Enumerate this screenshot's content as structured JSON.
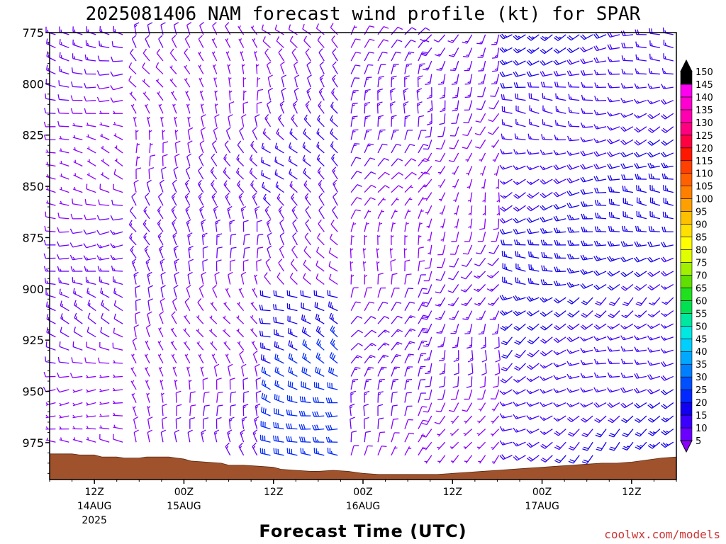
{
  "chart_data": {
    "type": "wind-barb-profile",
    "title": "2025081406 NAM forecast wind profile (kt) for SPAR",
    "xlabel": "Forecast Time (UTC)",
    "y_axis": {
      "label": "",
      "ticks": [
        775,
        800,
        825,
        850,
        875,
        900,
        925,
        950,
        975
      ],
      "range": [
        775,
        993
      ],
      "inverted": true
    },
    "x_axis": {
      "range_hours": [
        0,
        84
      ],
      "ticks": [
        {
          "hour": 6,
          "l1": "12Z",
          "l2": "14AUG",
          "l3": "2025"
        },
        {
          "hour": 18,
          "l1": "00Z",
          "l2": "15AUG",
          "l3": ""
        },
        {
          "hour": 30,
          "l1": "12Z",
          "l2": "",
          "l3": ""
        },
        {
          "hour": 42,
          "l1": "00Z",
          "l2": "16AUG",
          "l3": ""
        },
        {
          "hour": 54,
          "l1": "12Z",
          "l2": "",
          "l3": ""
        },
        {
          "hour": 66,
          "l1": "00Z",
          "l2": "17AUG",
          "l3": ""
        },
        {
          "hour": 78,
          "l1": "12Z",
          "l2": "",
          "l3": ""
        }
      ]
    },
    "colorbar": {
      "unit": "kt",
      "levels": [
        5,
        10,
        15,
        20,
        25,
        30,
        35,
        40,
        45,
        50,
        55,
        60,
        65,
        70,
        75,
        80,
        85,
        90,
        95,
        100,
        105,
        110,
        115,
        120,
        125,
        130,
        135,
        140,
        145,
        150
      ],
      "colors": [
        "#8a00ff",
        "#6a00ff",
        "#3c00ff",
        "#1200f0",
        "#0028ff",
        "#0050ff",
        "#0080ff",
        "#00a8ff",
        "#00cfff",
        "#00e8e0",
        "#00e8a0",
        "#00e050",
        "#20e020",
        "#60e000",
        "#a0f000",
        "#e0ff00",
        "#ffff00",
        "#ffe000",
        "#ffc000",
        "#ffa000",
        "#ff8000",
        "#ff6000",
        "#ff4000",
        "#ff1800",
        "#ff0040",
        "#ff0080",
        "#ff00b0",
        "#ff00d0",
        "#ff00f0",
        "#000000"
      ]
    },
    "terrain": {
      "color": "#a0522d",
      "surface_pressure": [
        [
          0,
          980.5
        ],
        [
          3,
          980.5
        ],
        [
          4,
          981
        ],
        [
          6,
          981
        ],
        [
          7,
          982
        ],
        [
          9,
          982
        ],
        [
          10,
          982.5
        ],
        [
          12,
          982.5
        ],
        [
          13,
          982
        ],
        [
          16,
          982
        ],
        [
          17,
          982.5
        ],
        [
          18,
          983
        ],
        [
          19,
          984
        ],
        [
          21,
          984.5
        ],
        [
          23,
          985
        ],
        [
          24,
          986
        ],
        [
          26,
          986
        ],
        [
          28,
          986.5
        ],
        [
          30,
          987
        ],
        [
          31,
          988
        ],
        [
          33,
          988.5
        ],
        [
          35,
          989
        ],
        [
          36,
          989
        ],
        [
          38,
          988.5
        ],
        [
          40,
          989
        ],
        [
          42,
          990
        ],
        [
          44,
          990.5
        ],
        [
          46,
          990.5
        ],
        [
          48,
          990.5
        ],
        [
          50,
          990.5
        ],
        [
          52,
          990.5
        ],
        [
          54,
          990
        ],
        [
          56,
          989.5
        ],
        [
          58,
          989
        ],
        [
          60,
          988.5
        ],
        [
          62,
          988
        ],
        [
          64,
          987.5
        ],
        [
          66,
          987
        ],
        [
          68,
          986.5
        ],
        [
          70,
          986
        ],
        [
          72,
          985.5
        ],
        [
          74,
          985
        ],
        [
          76,
          985
        ],
        [
          78,
          984.5
        ],
        [
          80,
          983.5
        ],
        [
          82,
          982.5
        ],
        [
          84,
          982
        ]
      ]
    },
    "wind_regimes": [
      {
        "t0": 0,
        "t1": 10,
        "p0": 775,
        "p1": 1000,
        "dir": 280,
        "spd": 10
      },
      {
        "t0": 10,
        "t1": 28,
        "p0": 775,
        "p1": 1000,
        "dir": 340,
        "spd": 10
      },
      {
        "t0": 28,
        "t1": 40,
        "p0": 775,
        "p1": 900,
        "dir": 320,
        "spd": 12
      },
      {
        "t0": 28,
        "t1": 40,
        "p0": 900,
        "p1": 1000,
        "dir": 290,
        "spd": 25
      },
      {
        "t0": 40,
        "t1": 50,
        "p0": 775,
        "p1": 1000,
        "dir": 20,
        "spd": 10
      },
      {
        "t0": 50,
        "t1": 62,
        "p0": 775,
        "p1": 1000,
        "dir": 200,
        "spd": 10
      },
      {
        "t0": 62,
        "t1": 84,
        "p0": 775,
        "p1": 900,
        "dir": 260,
        "spd": 20
      },
      {
        "t0": 62,
        "t1": 84,
        "p0": 900,
        "p1": 1000,
        "dir": 240,
        "spd": 20
      }
    ],
    "barb_grid": {
      "t_step": 1.8,
      "p_levels_per_axis": 34
    }
  },
  "footer": {
    "credit": "coolwx.com/models"
  }
}
